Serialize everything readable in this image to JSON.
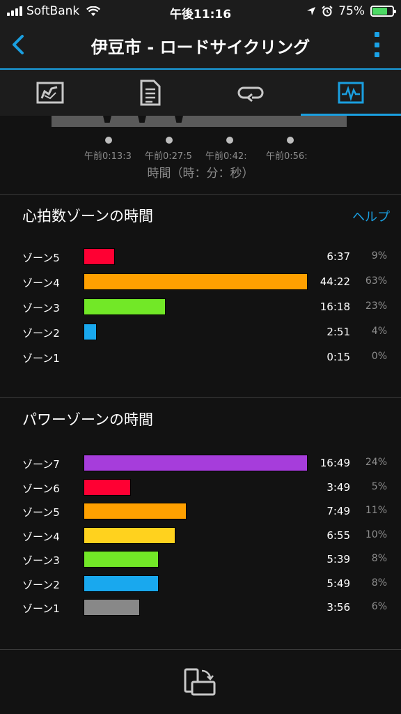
{
  "status_bar": {
    "carrier": "SoftBank",
    "time": "午後11:16",
    "battery_percent": "75%",
    "battery_level": 0.75
  },
  "header": {
    "title": "伊豆市 - ロードサイクリング",
    "accent_color": "#1a9fe0"
  },
  "tabs": [
    {
      "icon": "map-stats-icon",
      "active": false
    },
    {
      "icon": "details-list-icon",
      "active": false
    },
    {
      "icon": "laps-loop-icon",
      "active": false
    },
    {
      "icon": "chart-graph-icon",
      "active": true
    }
  ],
  "time_axis": {
    "ticks": [
      "午前0:13:3",
      "午前0:27:5",
      "午前0:42:",
      "午前0:56:"
    ],
    "label": "時間（時：分：秒）"
  },
  "heart_rate_zones": {
    "title": "心拍数ゾーンの時間",
    "help_label": "ヘルプ",
    "zones": [
      {
        "label": "ゾーン5",
        "time": "6:37",
        "percent": "9%",
        "fraction": 0.14,
        "color": "#ff0033"
      },
      {
        "label": "ゾーン4",
        "time": "44:22",
        "percent": "63%",
        "fraction": 1.0,
        "color": "#ffa000"
      },
      {
        "label": "ゾーン3",
        "time": "16:18",
        "percent": "23%",
        "fraction": 0.365,
        "color": "#72e827"
      },
      {
        "label": "ゾーン2",
        "time": "2:51",
        "percent": "4%",
        "fraction": 0.06,
        "color": "#19a8ee"
      },
      {
        "label": "ゾーン1",
        "time": "0:15",
        "percent": "0%",
        "fraction": 0.0,
        "color": "#888888"
      }
    ]
  },
  "power_zones": {
    "title": "パワーゾーンの時間",
    "zones": [
      {
        "label": "ゾーン7",
        "time": "16:49",
        "percent": "24%",
        "fraction": 1.0,
        "color": "#a63ddb"
      },
      {
        "label": "ゾーン6",
        "time": "3:49",
        "percent": "5%",
        "fraction": 0.21,
        "color": "#ff0033"
      },
      {
        "label": "ゾーン5",
        "time": "7:49",
        "percent": "11%",
        "fraction": 0.46,
        "color": "#ffa000"
      },
      {
        "label": "ゾーン4",
        "time": "6:55",
        "percent": "10%",
        "fraction": 0.41,
        "color": "#ffd21e"
      },
      {
        "label": "ゾーン3",
        "time": "5:39",
        "percent": "8%",
        "fraction": 0.335,
        "color": "#72e827"
      },
      {
        "label": "ゾーン2",
        "time": "5:49",
        "percent": "8%",
        "fraction": 0.335,
        "color": "#19a8ee"
      },
      {
        "label": "ゾーン1",
        "time": "3:56",
        "percent": "6%",
        "fraction": 0.25,
        "color": "#888888"
      }
    ]
  },
  "bottom_bar": {
    "icon": "rotate-device-icon"
  }
}
